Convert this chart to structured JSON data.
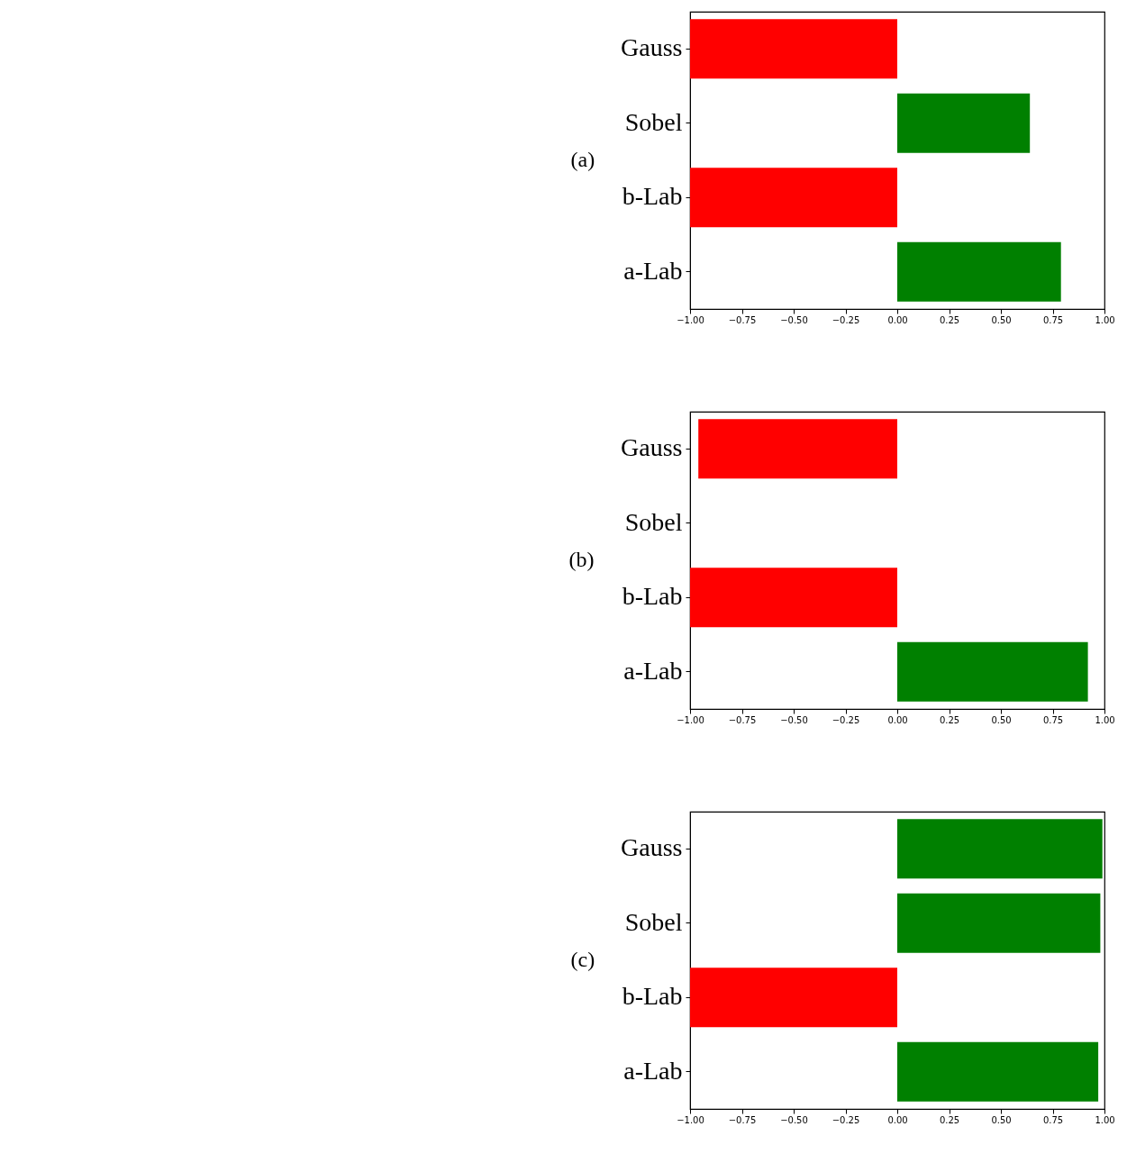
{
  "chart_data": [
    {
      "type": "bar",
      "orientation": "horizontal",
      "title": "(a)",
      "categories": [
        "Gauss",
        "Sobel",
        "b-Lab",
        "a-Lab"
      ],
      "values": [
        -1.0,
        0.64,
        -1.0,
        0.79
      ],
      "colors": [
        "#ff0000",
        "#008000",
        "#ff0000",
        "#008000"
      ],
      "xlim": [
        -1,
        1
      ],
      "xticks": [
        {
          "value": -1,
          "label": "−1.00"
        },
        {
          "value": -0.75,
          "label": "−0.75"
        },
        {
          "value": -0.5,
          "label": "−0.50"
        },
        {
          "value": -0.25,
          "label": "−0.25"
        },
        {
          "value": 0,
          "label": "0.00"
        },
        {
          "value": 0.25,
          "label": "0.25"
        },
        {
          "value": 0.5,
          "label": "0.50"
        },
        {
          "value": 0.75,
          "label": "0.75"
        },
        {
          "value": 1,
          "label": "1.00"
        }
      ]
    },
    {
      "type": "bar",
      "orientation": "horizontal",
      "title": "(b)",
      "categories": [
        "Gauss",
        "Sobel",
        "b-Lab",
        "a-Lab"
      ],
      "values": [
        -0.96,
        0,
        -1.0,
        0.92
      ],
      "colors": [
        "#ff0000",
        "#008000",
        "#ff0000",
        "#008000"
      ],
      "xlim": [
        -1,
        1
      ],
      "xticks": [
        {
          "value": -1,
          "label": "−1.00"
        },
        {
          "value": -0.75,
          "label": "−0.75"
        },
        {
          "value": -0.5,
          "label": "−0.50"
        },
        {
          "value": -0.25,
          "label": "−0.25"
        },
        {
          "value": 0,
          "label": "0.00"
        },
        {
          "value": 0.25,
          "label": "0.25"
        },
        {
          "value": 0.5,
          "label": "0.50"
        },
        {
          "value": 0.75,
          "label": "0.75"
        },
        {
          "value": 1,
          "label": "1.00"
        }
      ]
    },
    {
      "type": "bar",
      "orientation": "horizontal",
      "title": "(c)",
      "categories": [
        "Gauss",
        "Sobel",
        "b-Lab",
        "a-Lab"
      ],
      "values": [
        0.99,
        0.98,
        -1.0,
        0.97
      ],
      "colors": [
        "#008000",
        "#008000",
        "#ff0000",
        "#008000"
      ],
      "xlim": [
        -1,
        1
      ],
      "xticks": [
        {
          "value": -1,
          "label": "−1.00"
        },
        {
          "value": -0.75,
          "label": "−0.75"
        },
        {
          "value": -0.5,
          "label": "−0.50"
        },
        {
          "value": -0.25,
          "label": "−0.25"
        },
        {
          "value": 0,
          "label": "0.00"
        },
        {
          "value": 0.25,
          "label": "0.25"
        },
        {
          "value": 0.5,
          "label": "0.50"
        },
        {
          "value": 0.75,
          "label": "0.75"
        },
        {
          "value": 1,
          "label": "1.00"
        }
      ]
    }
  ]
}
